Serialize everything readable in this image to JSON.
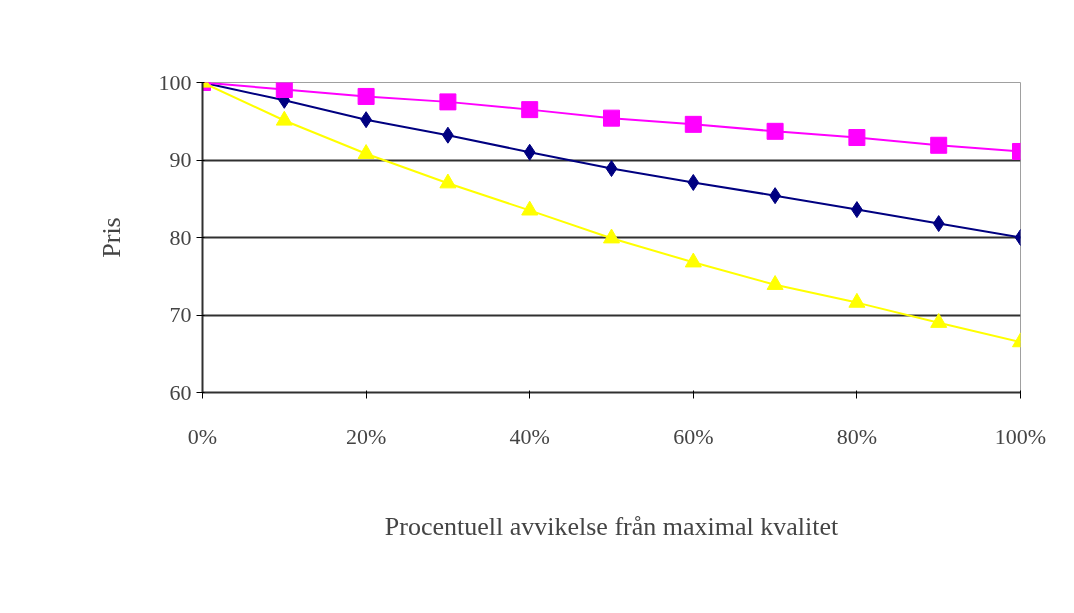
{
  "chart_data": {
    "type": "line",
    "xlabel": "Procentuell avvikelse från maximal kvalitet",
    "ylabel": "Pris",
    "x": [
      0,
      10,
      20,
      30,
      40,
      50,
      60,
      70,
      80,
      90,
      100
    ],
    "series": [
      {
        "color": "#000080",
        "marker": "diamond",
        "values": [
          100,
          97.7,
          95.2,
          93.2,
          91.0,
          88.9,
          87.1,
          85.4,
          83.6,
          81.8,
          80.0
        ]
      },
      {
        "color": "#ff00ff",
        "marker": "square",
        "values": [
          100,
          99.1,
          98.2,
          97.5,
          96.5,
          95.4,
          94.6,
          93.7,
          92.9,
          91.9,
          91.1
        ]
      },
      {
        "color": "#ffff00",
        "marker": "triangle",
        "values": [
          100,
          95.1,
          90.8,
          87.0,
          83.5,
          79.9,
          76.8,
          73.9,
          71.6,
          69.0,
          66.5
        ]
      }
    ],
    "xlim": [
      0,
      100
    ],
    "ylim": [
      60,
      100
    ],
    "xticks": [
      {
        "value": 0,
        "label": "0%"
      },
      {
        "value": 20,
        "label": "20%"
      },
      {
        "value": 40,
        "label": "40%"
      },
      {
        "value": 60,
        "label": "60%"
      },
      {
        "value": 80,
        "label": "80%"
      },
      {
        "value": 100,
        "label": "100%"
      }
    ],
    "yticks": [
      60,
      70,
      80,
      90,
      100
    ],
    "grid": "y"
  }
}
